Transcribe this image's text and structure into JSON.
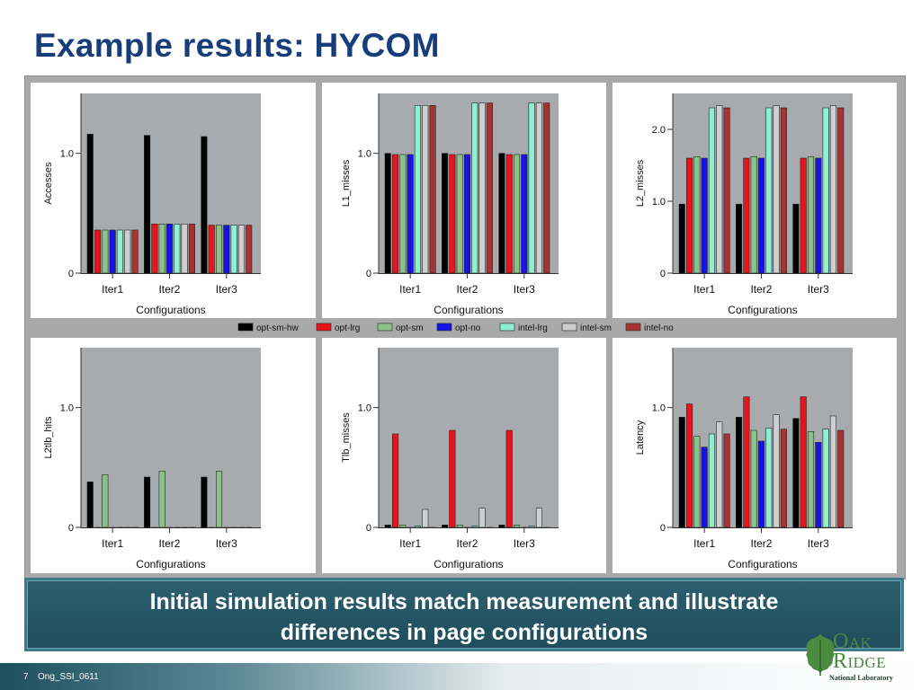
{
  "slide": {
    "title": "Example results: HYCOM",
    "callout_line1": "Initial simulation results match measurement and illustrate",
    "callout_line2": "differences in page configurations",
    "page_number": "7",
    "footer_text": "Ong_SSI_0611",
    "logo": {
      "line1": "Oak",
      "line2": "Ridge",
      "line3": "National Laboratory"
    }
  },
  "legend": {
    "items": [
      {
        "label": "opt-sm-hw",
        "color": "#000000"
      },
      {
        "label": "opt-lrg",
        "color": "#e8141b"
      },
      {
        "label": "opt-sm",
        "color": "#8cc28a"
      },
      {
        "label": "opt-no",
        "color": "#1414e6"
      },
      {
        "label": "intel-lrg",
        "color": "#8ef0d2"
      },
      {
        "label": "intel-sm",
        "color": "#cfcfcf"
      },
      {
        "label": "intel-no",
        "color": "#a83232"
      }
    ]
  },
  "chart_data": [
    {
      "type": "bar",
      "xlabel": "Configurations",
      "ylabel": "Accesses",
      "categories": [
        "Iter1",
        "Iter2",
        "Iter3"
      ],
      "ylim": [
        0,
        1.5
      ],
      "yticks": [
        0,
        1.0
      ],
      "ytick_labels": [
        "0",
        "1.0"
      ],
      "series": [
        {
          "name": "opt-sm-hw",
          "values": [
            1.16,
            1.15,
            1.14
          ]
        },
        {
          "name": "opt-lrg",
          "values": [
            0.36,
            0.41,
            0.4
          ]
        },
        {
          "name": "opt-sm",
          "values": [
            0.36,
            0.41,
            0.4
          ]
        },
        {
          "name": "opt-no",
          "values": [
            0.36,
            0.41,
            0.4
          ]
        },
        {
          "name": "intel-lrg",
          "values": [
            0.36,
            0.41,
            0.4
          ]
        },
        {
          "name": "intel-sm",
          "values": [
            0.36,
            0.41,
            0.4
          ]
        },
        {
          "name": "intel-no",
          "values": [
            0.36,
            0.41,
            0.4
          ]
        }
      ]
    },
    {
      "type": "bar",
      "xlabel": "Configurations",
      "ylabel": "L1_misses",
      "categories": [
        "Iter1",
        "Iter2",
        "Iter3"
      ],
      "ylim": [
        0,
        1.5
      ],
      "yticks": [
        0,
        1.0
      ],
      "ytick_labels": [
        "0",
        "1.0"
      ],
      "series": [
        {
          "name": "opt-sm-hw",
          "values": [
            1.0,
            1.0,
            1.0
          ]
        },
        {
          "name": "opt-lrg",
          "values": [
            0.99,
            0.99,
            0.99
          ]
        },
        {
          "name": "opt-sm",
          "values": [
            0.99,
            0.99,
            0.99
          ]
        },
        {
          "name": "opt-no",
          "values": [
            0.99,
            0.99,
            0.99
          ]
        },
        {
          "name": "intel-lrg",
          "values": [
            1.4,
            1.42,
            1.42
          ]
        },
        {
          "name": "intel-sm",
          "values": [
            1.4,
            1.42,
            1.42
          ]
        },
        {
          "name": "intel-no",
          "values": [
            1.4,
            1.42,
            1.42
          ]
        }
      ]
    },
    {
      "type": "bar",
      "xlabel": "Configurations",
      "ylabel": "L2_misses",
      "categories": [
        "Iter1",
        "Iter2",
        "Iter3"
      ],
      "ylim": [
        0,
        2.5
      ],
      "yticks": [
        0,
        1.0,
        2.0
      ],
      "ytick_labels": [
        "0",
        "1.0",
        "2.0"
      ],
      "series": [
        {
          "name": "opt-sm-hw",
          "values": [
            0.96,
            0.96,
            0.96
          ]
        },
        {
          "name": "opt-lrg",
          "values": [
            1.6,
            1.6,
            1.6
          ]
        },
        {
          "name": "opt-sm",
          "values": [
            1.62,
            1.62,
            1.62
          ]
        },
        {
          "name": "opt-no",
          "values": [
            1.6,
            1.6,
            1.6
          ]
        },
        {
          "name": "intel-lrg",
          "values": [
            2.3,
            2.3,
            2.3
          ]
        },
        {
          "name": "intel-sm",
          "values": [
            2.33,
            2.33,
            2.33
          ]
        },
        {
          "name": "intel-no",
          "values": [
            2.3,
            2.3,
            2.3
          ]
        }
      ]
    },
    {
      "type": "bar",
      "xlabel": "Configurations",
      "ylabel": "L2tlb_hits",
      "categories": [
        "Iter1",
        "Iter2",
        "Iter3"
      ],
      "ylim": [
        0,
        1.5
      ],
      "yticks": [
        0,
        1.0
      ],
      "ytick_labels": [
        "0",
        "1.0"
      ],
      "series": [
        {
          "name": "opt-sm-hw",
          "values": [
            0.38,
            0.42,
            0.42
          ]
        },
        {
          "name": "opt-lrg",
          "values": [
            0.0,
            0.0,
            0.0
          ]
        },
        {
          "name": "opt-sm",
          "values": [
            0.44,
            0.47,
            0.47
          ]
        },
        {
          "name": "opt-no",
          "values": [
            0.0,
            0.0,
            0.0
          ]
        },
        {
          "name": "intel-lrg",
          "values": [
            0.0,
            0.0,
            0.0
          ]
        },
        {
          "name": "intel-sm",
          "values": [
            0.0,
            0.0,
            0.0
          ]
        },
        {
          "name": "intel-no",
          "values": [
            0.0,
            0.0,
            0.0
          ]
        }
      ]
    },
    {
      "type": "bar",
      "xlabel": "Configurations",
      "ylabel": "Tlb_misses",
      "categories": [
        "Iter1",
        "Iter2",
        "Iter3"
      ],
      "ylim": [
        0,
        1.5
      ],
      "yticks": [
        0,
        1.0
      ],
      "ytick_labels": [
        "0",
        "1.0"
      ],
      "series": [
        {
          "name": "opt-sm-hw",
          "values": [
            0.02,
            0.02,
            0.02
          ]
        },
        {
          "name": "opt-lrg",
          "values": [
            0.78,
            0.81,
            0.81
          ]
        },
        {
          "name": "opt-sm",
          "values": [
            0.02,
            0.02,
            0.02
          ]
        },
        {
          "name": "opt-no",
          "values": [
            0.0,
            0.0,
            0.0
          ]
        },
        {
          "name": "intel-lrg",
          "values": [
            0.01,
            0.01,
            0.01
          ]
        },
        {
          "name": "intel-sm",
          "values": [
            0.15,
            0.16,
            0.16
          ]
        },
        {
          "name": "intel-no",
          "values": [
            0.0,
            0.0,
            0.0
          ]
        }
      ]
    },
    {
      "type": "bar",
      "xlabel": "Configurations",
      "ylabel": "Latency",
      "categories": [
        "Iter1",
        "Iter2",
        "Iter3"
      ],
      "ylim": [
        0,
        1.5
      ],
      "yticks": [
        0,
        1.0
      ],
      "ytick_labels": [
        "0",
        "1.0"
      ],
      "series": [
        {
          "name": "opt-sm-hw",
          "values": [
            0.92,
            0.92,
            0.91
          ]
        },
        {
          "name": "opt-lrg",
          "values": [
            1.03,
            1.09,
            1.09
          ]
        },
        {
          "name": "opt-sm",
          "values": [
            0.76,
            0.81,
            0.8
          ]
        },
        {
          "name": "opt-no",
          "values": [
            0.67,
            0.72,
            0.71
          ]
        },
        {
          "name": "intel-lrg",
          "values": [
            0.78,
            0.83,
            0.82
          ]
        },
        {
          "name": "intel-sm",
          "values": [
            0.88,
            0.94,
            0.93
          ]
        },
        {
          "name": "intel-no",
          "values": [
            0.78,
            0.82,
            0.81
          ]
        }
      ]
    }
  ]
}
